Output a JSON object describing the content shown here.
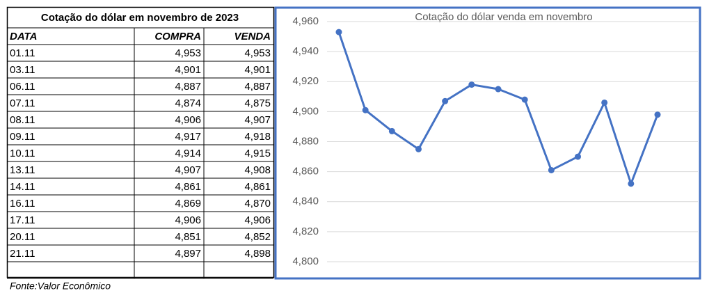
{
  "table": {
    "title": "Cotação do dólar em novembro de 2023",
    "header": [
      "DATA",
      "COMPRA",
      "VENDA"
    ],
    "rows": [
      [
        "01.11",
        "4,953",
        "4,953"
      ],
      [
        "03.11",
        "4,901",
        "4,901"
      ],
      [
        "06.11",
        "4,887",
        "4,887"
      ],
      [
        "07.11",
        "4,874",
        "4,875"
      ],
      [
        "08.11",
        "4,906",
        "4,907"
      ],
      [
        "09.11",
        "4,917",
        "4,918"
      ],
      [
        "10.11",
        "4,914",
        "4,915"
      ],
      [
        "13.11",
        "4,907",
        "4,908"
      ],
      [
        "14.11",
        "4,861",
        "4,861"
      ],
      [
        "16.11",
        "4,869",
        "4,870"
      ],
      [
        "17.11",
        "4,906",
        "4,906"
      ],
      [
        "20.11",
        "4,851",
        "4,852"
      ],
      [
        "21.11",
        "4,897",
        "4,898"
      ]
    ],
    "source": "Fonte:Valor Econômico"
  },
  "chart_data": {
    "type": "line",
    "title": "Cotação do dólar venda em novembro",
    "categories": [
      null,
      null,
      null,
      null,
      null,
      null,
      null,
      null,
      null,
      null,
      null,
      null,
      null
    ],
    "values": [
      4.953,
      4.901,
      4.887,
      4.875,
      4.907,
      4.918,
      4.915,
      4.908,
      4.861,
      4.87,
      4.906,
      4.852,
      4.898
    ],
    "color": "#4472c4",
    "ylim": [
      4.8,
      4.96
    ],
    "yticks": [
      {
        "value": 4.8,
        "label": "4,800"
      },
      {
        "value": 4.82,
        "label": "4,820"
      },
      {
        "value": 4.84,
        "label": "4,840"
      },
      {
        "value": 4.86,
        "label": "4,860"
      },
      {
        "value": 4.88,
        "label": "4,880"
      },
      {
        "value": 4.9,
        "label": "4,900"
      },
      {
        "value": 4.92,
        "label": "4,920"
      },
      {
        "value": 4.94,
        "label": "4,940"
      },
      {
        "value": 4.96,
        "label": "4,960"
      }
    ],
    "grid": true
  }
}
